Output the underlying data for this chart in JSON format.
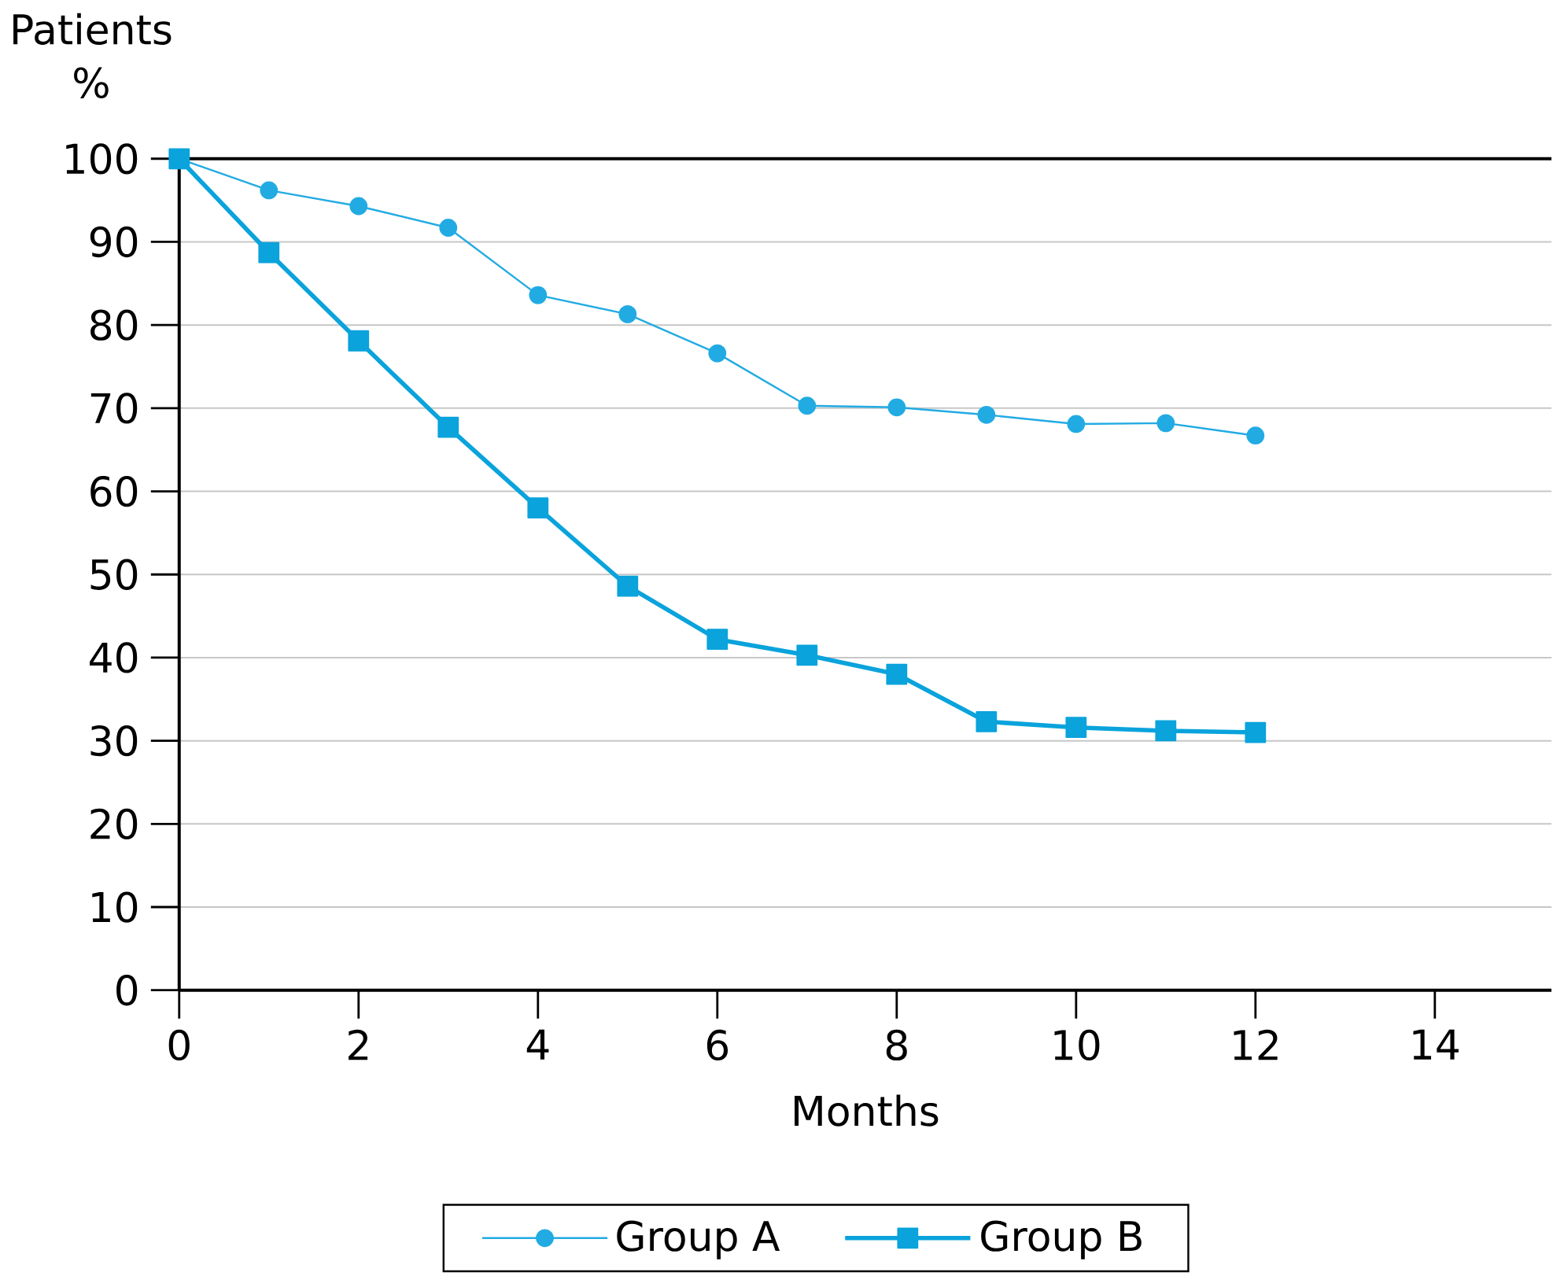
{
  "chart_data": {
    "type": "line",
    "xlabel": "Months",
    "ylabel": "Patients %",
    "x": [
      0,
      1,
      2,
      3,
      4,
      5,
      6,
      7,
      8,
      9,
      10,
      11,
      12
    ],
    "series": [
      {
        "name": "Group A",
        "color": "#22abe3",
        "marker": "circle",
        "values": [
          100,
          96.2,
          94.3,
          91.7,
          83.6,
          81.3,
          76.6,
          70.3,
          70.1,
          69.2,
          68.1,
          68.2,
          66.7
        ]
      },
      {
        "name": "Group B",
        "color": "#0aa3dc",
        "marker": "square",
        "values": [
          100,
          88.7,
          78.1,
          67.7,
          58.0,
          48.6,
          42.2,
          40.3,
          38.0,
          32.3,
          31.6,
          31.2,
          31.0
        ]
      }
    ],
    "xlim": [
      0,
      15.3
    ],
    "xticks": [
      0,
      2,
      4,
      6,
      8,
      10,
      12,
      14
    ],
    "ylim": [
      0,
      100
    ],
    "yticks": [
      0,
      10,
      20,
      30,
      40,
      50,
      60,
      70,
      80,
      90,
      100
    ],
    "grid": "y",
    "legend": "bottom"
  }
}
